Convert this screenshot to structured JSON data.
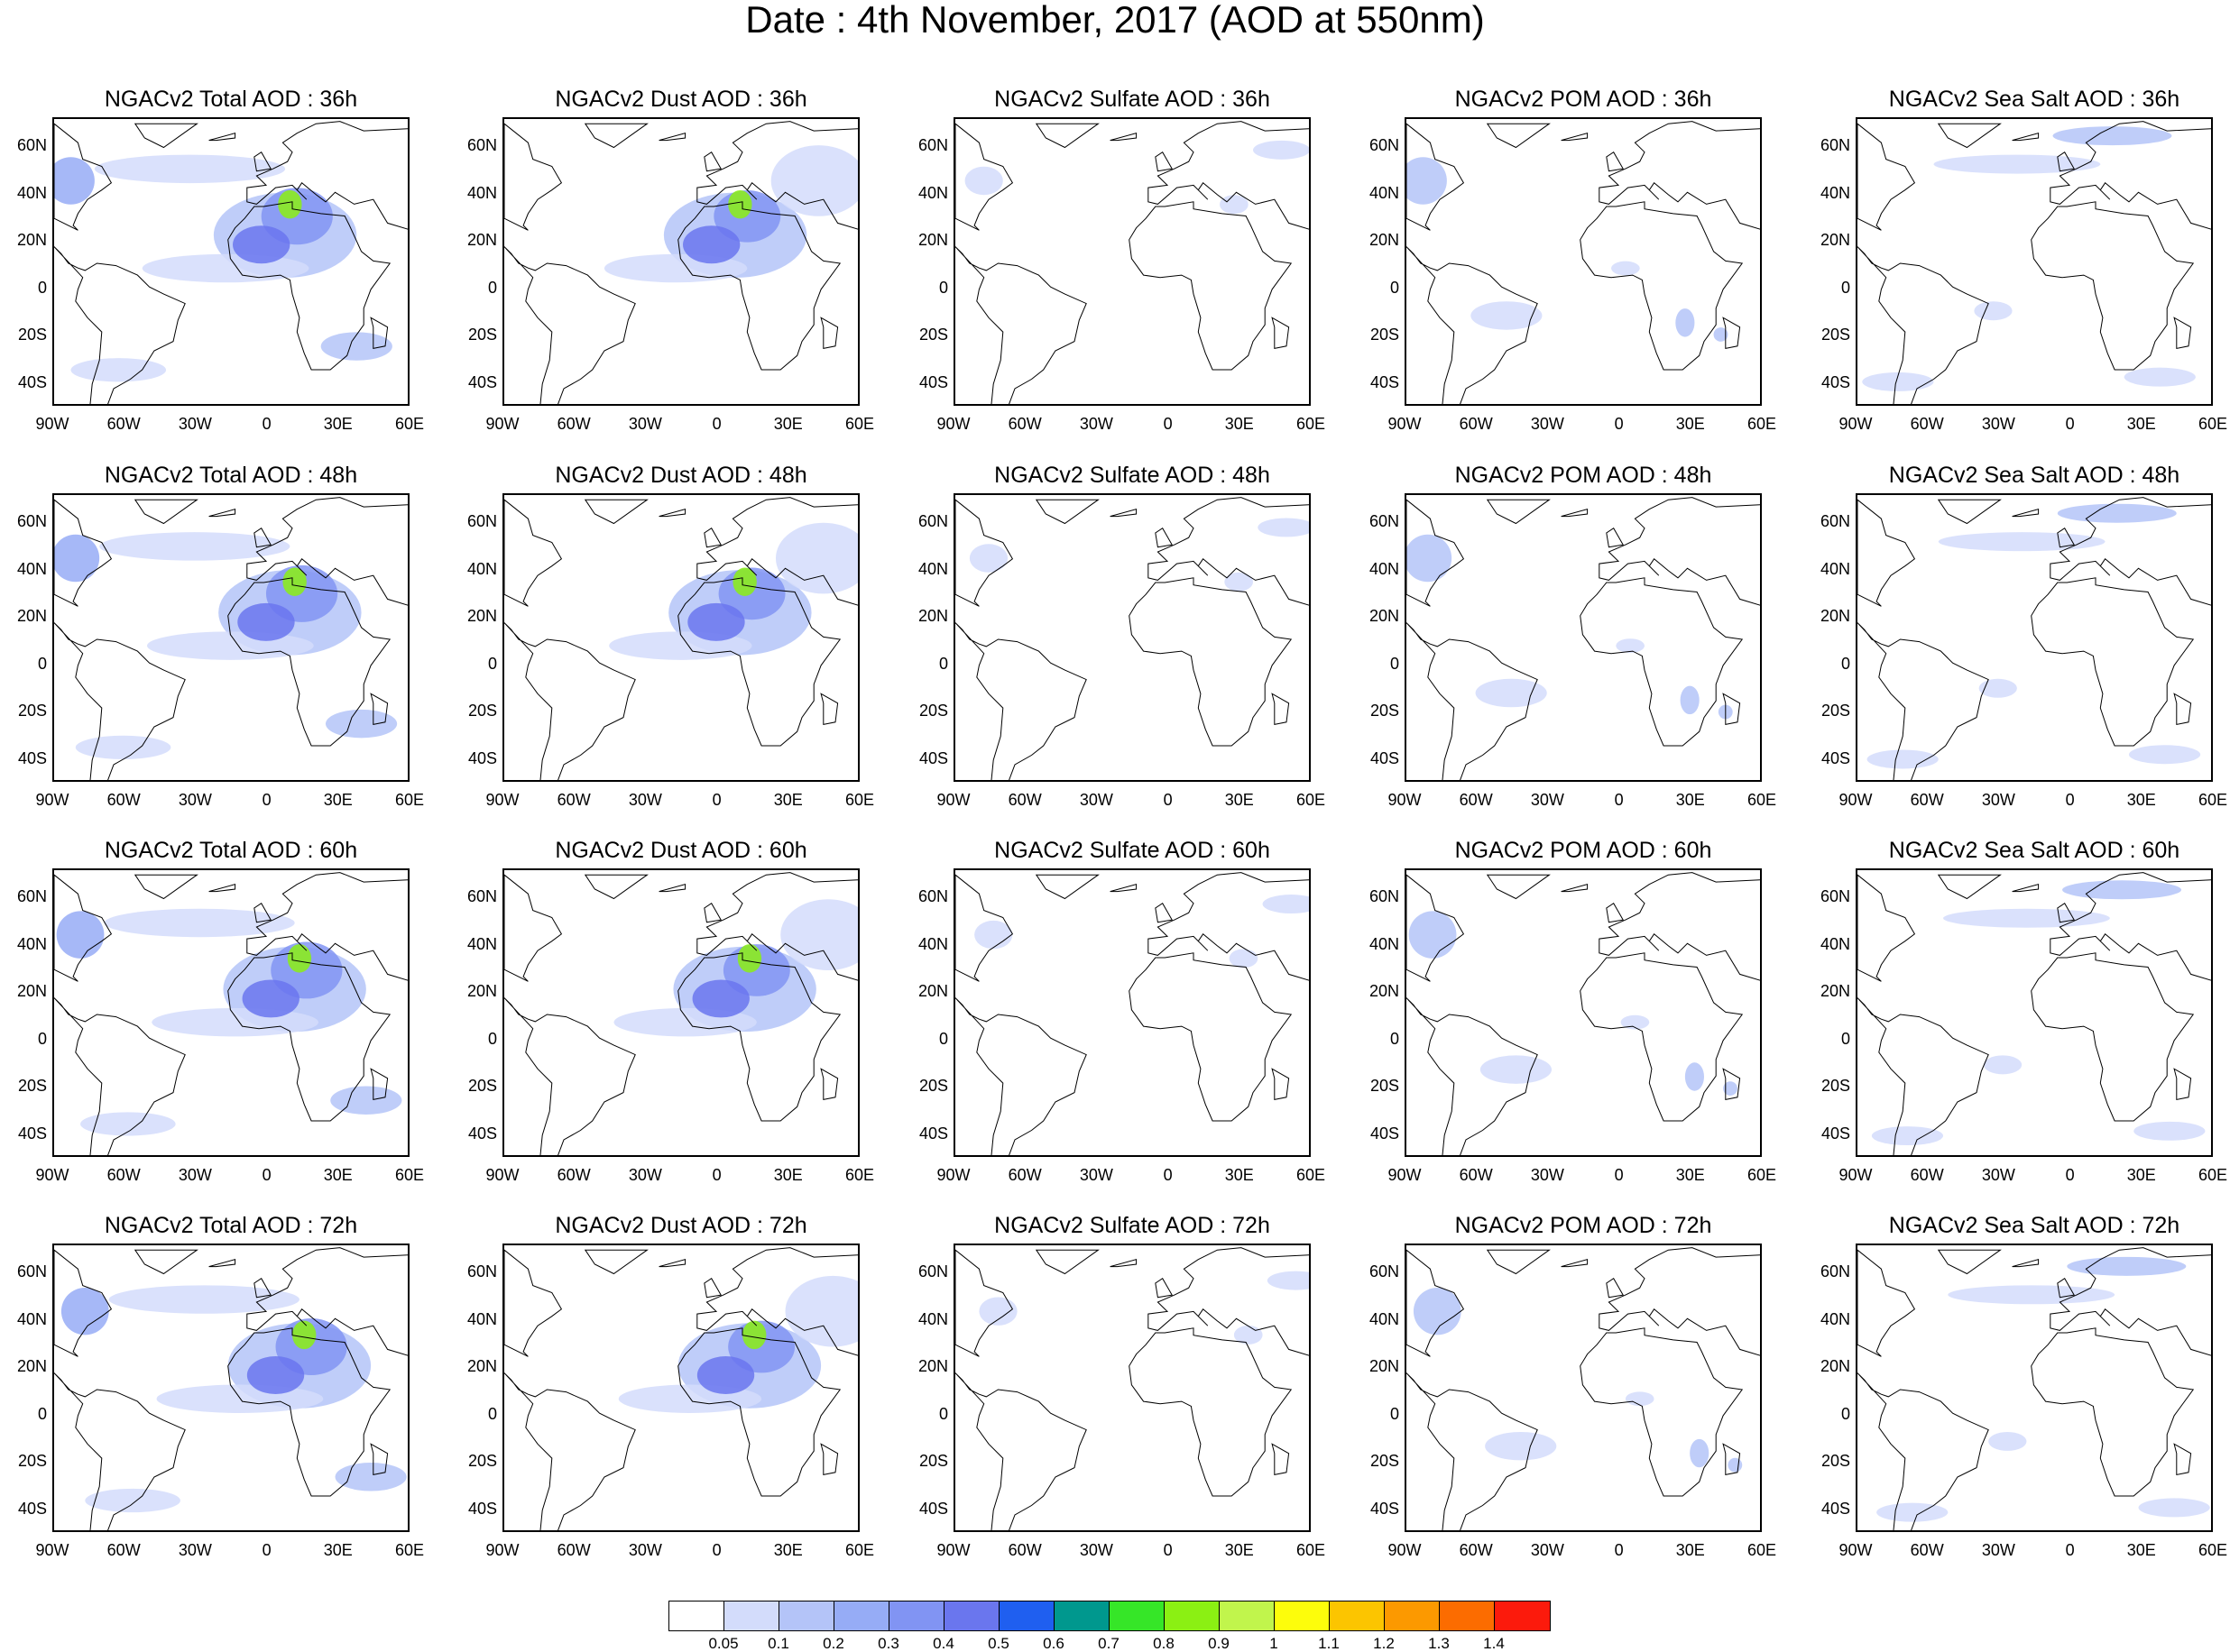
{
  "title": "Date : 4th November, 2017 (AOD at 550nm)",
  "lon_ticks": [
    "90W",
    "60W",
    "30W",
    "0",
    "30E",
    "60E"
  ],
  "lat_ticks": [
    "60N",
    "40N",
    "20N",
    "0",
    "20S",
    "40S"
  ],
  "panel_titles": [
    [
      "NGACv2 Total AOD : 36h",
      "NGACv2 Dust AOD : 36h",
      "NGACv2 Sulfate AOD : 36h",
      "NGACv2 POM AOD : 36h",
      "NGACv2 Sea Salt AOD : 36h"
    ],
    [
      "NGACv2 Total AOD : 48h",
      "NGACv2 Dust AOD : 48h",
      "NGACv2 Sulfate AOD : 48h",
      "NGACv2 POM AOD : 48h",
      "NGACv2 Sea Salt AOD : 48h"
    ],
    [
      "NGACv2 Total AOD : 60h",
      "NGACv2 Dust AOD : 60h",
      "NGACv2 Sulfate AOD : 60h",
      "NGACv2 POM AOD : 60h",
      "NGACv2 Sea Salt AOD : 60h"
    ],
    [
      "NGACv2 Total AOD : 72h",
      "NGACv2 Dust AOD : 72h",
      "NGACv2 Sulfate AOD : 72h",
      "NGACv2 POM AOD : 72h",
      "NGACv2 Sea Salt  AOD : 72h"
    ]
  ],
  "colorbar": {
    "labels": [
      "0.05",
      "0.1",
      "0.2",
      "0.3",
      "0.4",
      "0.5",
      "0.6",
      "0.7",
      "0.8",
      "0.9",
      "1",
      "1.1",
      "1.2",
      "1.3",
      "1.4"
    ],
    "colors": [
      "#ffffff",
      "#d3dcfb",
      "#b4c4f8",
      "#96acf6",
      "#8194f3",
      "#6a76ee",
      "#1f5ff0",
      "#00988e",
      "#36e628",
      "#8bf013",
      "#c1f54c",
      "#fdfd0b",
      "#fcc500",
      "#fc9900",
      "#fc6c00",
      "#fc1a0c"
    ]
  }
}
